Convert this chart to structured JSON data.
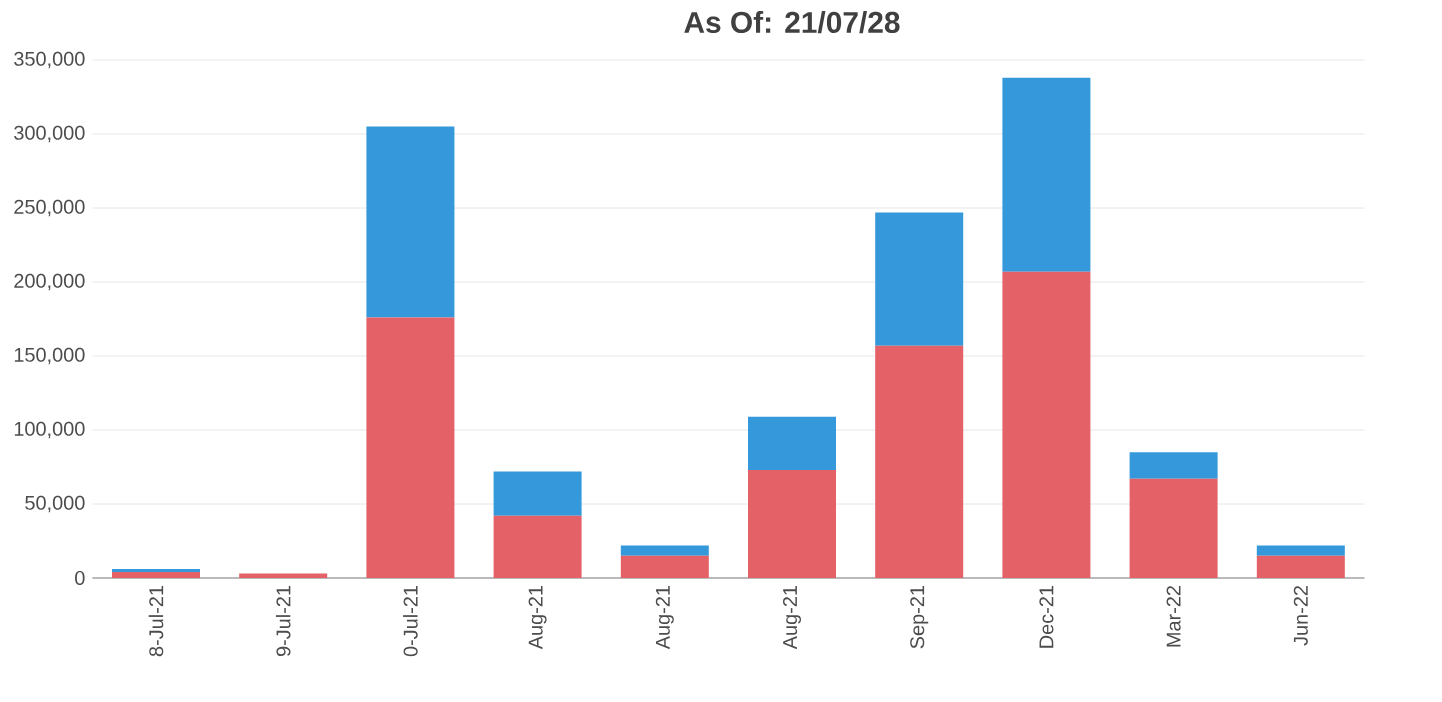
{
  "chart_data": {
    "type": "bar",
    "title": "As Of: 21/07/28",
    "stacked": true,
    "grid": "y",
    "categories": [
      "8-Jul-21",
      "9-Jul-21",
      "0-Jul-21",
      "Aug-21",
      "Aug-21",
      "Aug-21",
      "Sep-21",
      "Dec-21",
      "Mar-22",
      "Jun-22"
    ],
    "series": [
      {
        "color": "#e36167",
        "values": [
          4000,
          3000,
          176000,
          42000,
          15000,
          73000,
          157000,
          207000,
          67000,
          15000
        ]
      },
      {
        "color": "#3498db",
        "values": [
          2000,
          null,
          129000,
          30000,
          7000,
          36000,
          90000,
          131000,
          18000,
          7000
        ]
      }
    ],
    "ylim": [
      0,
      350000
    ],
    "yticks": [
      {
        "value": 0,
        "label": "0"
      },
      {
        "value": 50000,
        "label": "50,000"
      },
      {
        "value": 100000,
        "label": "100,000"
      },
      {
        "value": 150000,
        "label": "150,000"
      },
      {
        "value": 200000,
        "label": "200,000"
      },
      {
        "value": 250000,
        "label": "250,000"
      },
      {
        "value": 300000,
        "label": "300,000"
      },
      {
        "value": 350000,
        "label": "350,000"
      }
    ]
  }
}
